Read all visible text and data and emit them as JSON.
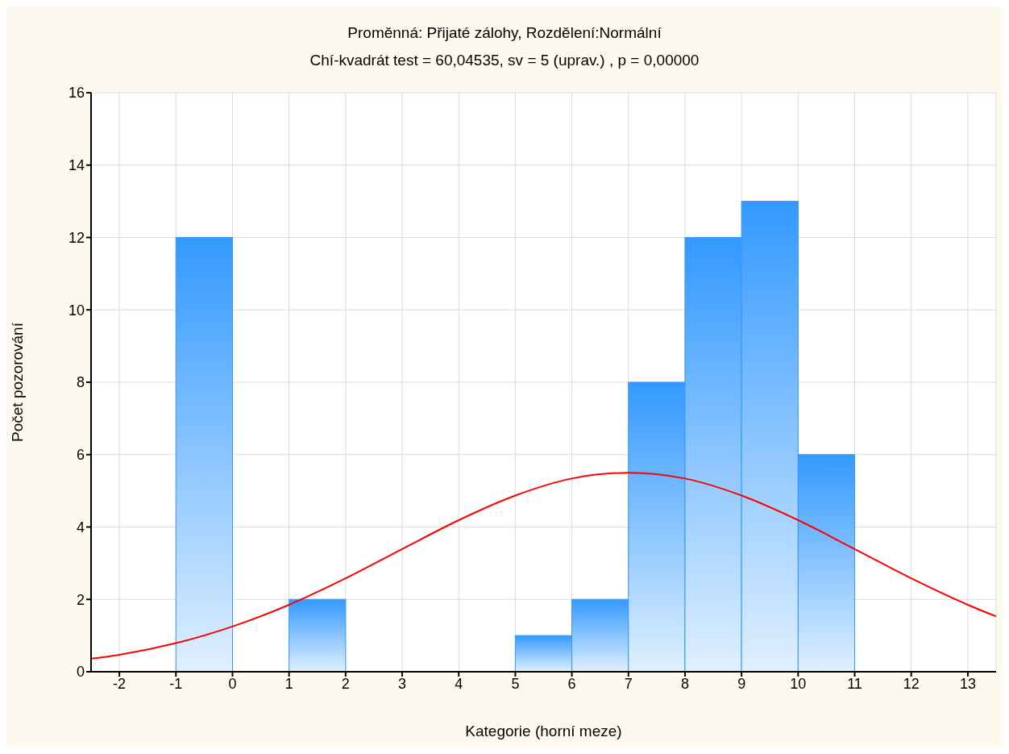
{
  "chart_data": {
    "type": "histogram",
    "title": "Proměnná: Přijaté zálohy, Rozdělení:Normální",
    "subtitle": "Chí-kvadrát test = 60,04535, sv = 5 (uprav.) , p = 0,00000",
    "xlabel": "Kategorie (horní meze)",
    "ylabel": "Počet pozorování",
    "bins": [
      -2,
      -1,
      0,
      1,
      2,
      3,
      4,
      5,
      6,
      7,
      8,
      9,
      10,
      11
    ],
    "series": [
      {
        "color": "#3399ff",
        "values": [
          0,
          12,
          0,
          2,
          0,
          0,
          0,
          1,
          2,
          8,
          12,
          13,
          6
        ]
      },
      {
        "type": "line",
        "color": "#ff0000",
        "x": [
          -2.5,
          -2,
          -1,
          0,
          1,
          2,
          3,
          4,
          5,
          6,
          7,
          8,
          9,
          10,
          11,
          12,
          13,
          13.5
        ],
        "values": [
          0.36,
          0.47,
          0.79,
          1.25,
          1.85,
          2.58,
          3.39,
          4.19,
          4.87,
          5.34,
          5.5,
          5.34,
          4.87,
          4.19,
          3.39,
          2.58,
          1.85,
          1.53
        ]
      }
    ],
    "xlim": [
      -2.5,
      13.5
    ],
    "xticks": [
      -2,
      -1,
      0,
      1,
      2,
      3,
      4,
      5,
      6,
      7,
      8,
      9,
      10,
      11,
      12,
      13
    ],
    "ylim": [
      0,
      16
    ],
    "yticks": [
      0,
      2,
      4,
      6,
      8,
      10,
      12,
      14,
      16
    ],
    "grid": true,
    "legend": false,
    "marker": "none",
    "line_style": "solid"
  }
}
